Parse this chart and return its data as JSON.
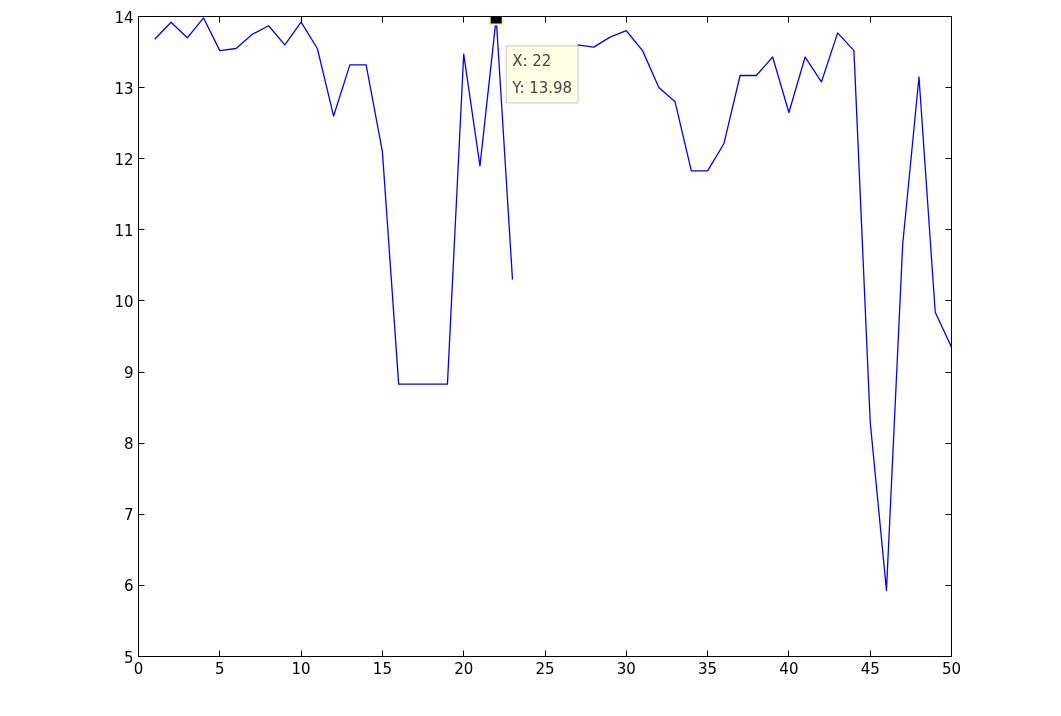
{
  "chart_data": {
    "type": "line",
    "x": [
      1,
      2,
      3,
      4,
      5,
      6,
      7,
      8,
      9,
      10,
      11,
      12,
      13,
      14,
      15,
      16,
      17,
      18,
      19,
      20,
      21,
      22,
      23,
      24,
      25,
      26,
      27,
      28,
      29,
      30,
      31,
      32,
      33,
      34,
      35,
      36,
      37,
      38,
      39,
      40,
      41,
      42,
      43,
      44,
      45,
      46,
      47,
      48,
      49,
      50
    ],
    "series": [
      {
        "color": "#0000ff",
        "values": [
          13.68,
          13.92,
          13.7,
          13.98,
          13.52,
          13.55,
          13.75,
          13.87,
          13.6,
          13.92,
          13.55,
          12.6,
          13.32,
          13.32,
          12.1,
          8.83,
          8.83,
          8.83,
          8.83,
          13.47,
          11.9,
          13.98,
          10.3,
          null,
          null,
          null,
          13.6,
          13.57,
          13.71,
          13.8,
          13.52,
          13.0,
          12.8,
          11.83,
          11.83,
          12.21,
          13.17,
          13.17,
          13.43,
          12.65,
          13.43,
          13.08,
          13.77,
          13.52,
          8.3,
          5.93,
          10.8,
          13.15,
          9.84,
          9.35
        ]
      }
    ],
    "xlim": [
      0,
      50
    ],
    "xticks": [
      0,
      5,
      10,
      15,
      20,
      25,
      30,
      35,
      40,
      45,
      50
    ],
    "ylim": [
      5,
      14
    ],
    "yticks": [
      5,
      6,
      7,
      8,
      9,
      10,
      11,
      12,
      13,
      14
    ],
    "grid": false,
    "marker": "none",
    "line_style": "solid",
    "annotations": [
      {
        "text": "X: 22\nY: 13.98",
        "x": 22,
        "y": 13.98
      }
    ]
  }
}
